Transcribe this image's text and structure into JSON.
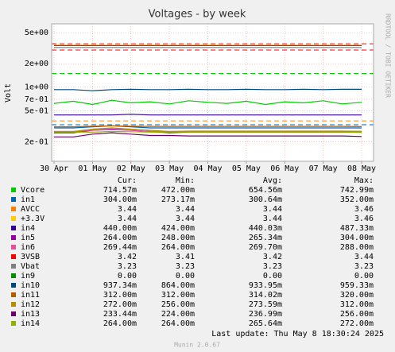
{
  "chart_data": {
    "type": "line",
    "title": "Voltages - by week",
    "y_label": "Volt",
    "log_scale": true,
    "grid": true,
    "categories": [
      "30 Apr",
      null,
      "01 May",
      null,
      "02 May",
      null,
      "03 May",
      null,
      "04 May",
      null,
      "05 May",
      null,
      "06 May",
      null,
      "07 May",
      null,
      "08 May"
    ],
    "ylim": [
      0.112,
      6.5
    ],
    "yticks": [
      {
        "value": 0.2,
        "label": "2e-01"
      },
      {
        "value": 0.5,
        "label": "5e-01"
      },
      {
        "value": 0.7,
        "label": "7e-01"
      },
      {
        "value": 1,
        "label": "1e+00"
      },
      {
        "value": 2,
        "label": "2e+00"
      },
      {
        "value": 5,
        "label": "5e+00"
      }
    ],
    "thresholds": [
      {
        "value": 3.6,
        "color": "#ff0000"
      },
      {
        "value": 3.0,
        "color": "#ff0000"
      },
      {
        "value": 1.5,
        "color": "#00cc00"
      },
      {
        "value": 0.37,
        "color": "#ff8000"
      },
      {
        "value": 0.33,
        "color": "#0066b3"
      }
    ],
    "stat_headers": [
      "Cur:",
      "Min:",
      "Avg:",
      "Max:"
    ],
    "series": [
      {
        "name": "Vcore",
        "color": "#00cc00",
        "values": [
          0.62,
          0.66,
          0.6,
          0.68,
          0.63,
          0.65,
          0.61,
          0.67,
          0.64,
          0.62,
          0.66,
          0.6,
          0.65,
          0.63,
          0.67,
          0.61,
          0.64
        ],
        "stats": [
          "714.57m",
          "472.00m",
          "654.56m",
          "742.99m"
        ]
      },
      {
        "name": "in1",
        "color": "#0066b3",
        "values": [
          0.3,
          0.3,
          0.31,
          0.32,
          0.31,
          0.3,
          0.3,
          0.3,
          0.3,
          0.3,
          0.3,
          0.3,
          0.3,
          0.3,
          0.3,
          0.3,
          0.3
        ],
        "stats": [
          "304.00m",
          "273.17m",
          "300.64m",
          "352.00m"
        ]
      },
      {
        "name": "AVCC",
        "color": "#ff8000",
        "values": [
          3.44,
          3.44,
          3.44,
          3.44,
          3.44,
          3.44,
          3.44,
          3.44,
          3.44,
          3.44,
          3.44,
          3.44,
          3.44,
          3.44,
          3.44,
          3.44,
          3.44
        ],
        "stats": [
          "3.44",
          "3.44",
          "3.44",
          "3.46"
        ]
      },
      {
        "name": "+3.3V",
        "color": "#ffcc00",
        "values": [
          3.45,
          3.44,
          3.45,
          3.44,
          3.44,
          3.45,
          3.44,
          3.44,
          3.45,
          3.44,
          3.44,
          3.44,
          3.45,
          3.44,
          3.44,
          3.44,
          3.44
        ],
        "stats": [
          "3.44",
          "3.44",
          "3.44",
          "3.46"
        ]
      },
      {
        "name": "in4",
        "color": "#330099",
        "values": [
          0.44,
          0.44,
          0.44,
          0.44,
          0.45,
          0.44,
          0.44,
          0.44,
          0.44,
          0.44,
          0.44,
          0.44,
          0.44,
          0.44,
          0.44,
          0.44,
          0.44
        ],
        "stats": [
          "440.00m",
          "424.00m",
          "440.03m",
          "487.33m"
        ]
      },
      {
        "name": "in5",
        "color": "#990099",
        "values": [
          0.26,
          0.26,
          0.28,
          0.29,
          0.28,
          0.27,
          0.26,
          0.265,
          0.265,
          0.265,
          0.265,
          0.265,
          0.265,
          0.265,
          0.265,
          0.265,
          0.264
        ],
        "stats": [
          "264.00m",
          "248.00m",
          "265.34m",
          "304.00m"
        ]
      },
      {
        "name": "in6",
        "color": "#e0509c",
        "values": [
          0.27,
          0.27,
          0.28,
          0.285,
          0.28,
          0.27,
          0.27,
          0.27,
          0.27,
          0.27,
          0.27,
          0.27,
          0.27,
          0.27,
          0.27,
          0.27,
          0.269
        ],
        "stats": [
          "269.44m",
          "264.00m",
          "269.70m",
          "288.00m"
        ]
      },
      {
        "name": "3VSB",
        "color": "#ff0000",
        "values": [
          3.42,
          3.42,
          3.42,
          3.42,
          3.42,
          3.42,
          3.42,
          3.42,
          3.42,
          3.42,
          3.42,
          3.42,
          3.42,
          3.42,
          3.42,
          3.42,
          3.42
        ],
        "stats": [
          "3.42",
          "3.41",
          "3.42",
          "3.44"
        ]
      },
      {
        "name": "Vbat",
        "color": "#808080",
        "values": [
          3.23,
          3.23,
          3.23,
          3.23,
          3.23,
          3.23,
          3.23,
          3.23,
          3.23,
          3.23,
          3.23,
          3.23,
          3.23,
          3.23,
          3.23,
          3.23,
          3.23
        ],
        "stats": [
          "3.23",
          "3.23",
          "3.23",
          "3.23"
        ]
      },
      {
        "name": "in9",
        "color": "#008f00",
        "values": [
          null,
          null,
          null,
          null,
          null,
          null,
          null,
          null,
          null,
          null,
          null,
          null,
          null,
          null,
          null,
          null,
          null
        ],
        "stats": [
          "0.00",
          "0.00",
          "0.00",
          "0.00"
        ]
      },
      {
        "name": "in10",
        "color": "#00487d",
        "values": [
          0.93,
          0.93,
          0.9,
          0.93,
          0.94,
          0.93,
          0.93,
          0.94,
          0.93,
          0.93,
          0.94,
          0.93,
          0.93,
          0.94,
          0.93,
          0.94,
          0.94
        ],
        "stats": [
          "937.34m",
          "864.00m",
          "933.95m",
          "959.33m"
        ]
      },
      {
        "name": "in11",
        "color": "#b35a00",
        "values": [
          0.31,
          0.31,
          0.315,
          0.32,
          0.315,
          0.314,
          0.314,
          0.314,
          0.314,
          0.314,
          0.314,
          0.314,
          0.314,
          0.314,
          0.314,
          0.314,
          0.312
        ],
        "stats": [
          "312.00m",
          "312.00m",
          "314.02m",
          "320.00m"
        ]
      },
      {
        "name": "in12",
        "color": "#b38f00",
        "values": [
          0.27,
          0.27,
          0.29,
          0.3,
          0.29,
          0.28,
          0.27,
          0.273,
          0.273,
          0.273,
          0.273,
          0.273,
          0.273,
          0.273,
          0.273,
          0.273,
          0.272
        ],
        "stats": [
          "272.00m",
          "256.00m",
          "273.59m",
          "312.00m"
        ]
      },
      {
        "name": "in13",
        "color": "#6b006b",
        "values": [
          0.23,
          0.23,
          0.25,
          0.26,
          0.25,
          0.24,
          0.24,
          0.237,
          0.237,
          0.237,
          0.237,
          0.237,
          0.237,
          0.237,
          0.237,
          0.237,
          0.233
        ],
        "stats": [
          "233.44m",
          "224.00m",
          "236.99m",
          "256.00m"
        ]
      },
      {
        "name": "in14",
        "color": "#8fb300",
        "values": [
          0.265,
          0.265,
          0.265,
          0.27,
          0.268,
          0.265,
          0.265,
          0.265,
          0.265,
          0.265,
          0.265,
          0.265,
          0.265,
          0.265,
          0.265,
          0.265,
          0.264
        ],
        "stats": [
          "264.00m",
          "264.00m",
          "265.64m",
          "272.00m"
        ]
      }
    ],
    "footer": "Last update: Thu May  8 18:30:24 2025",
    "credit": "Munin 2.0.67",
    "side_text": "RRDTOOL / TOBI OETIKER"
  }
}
